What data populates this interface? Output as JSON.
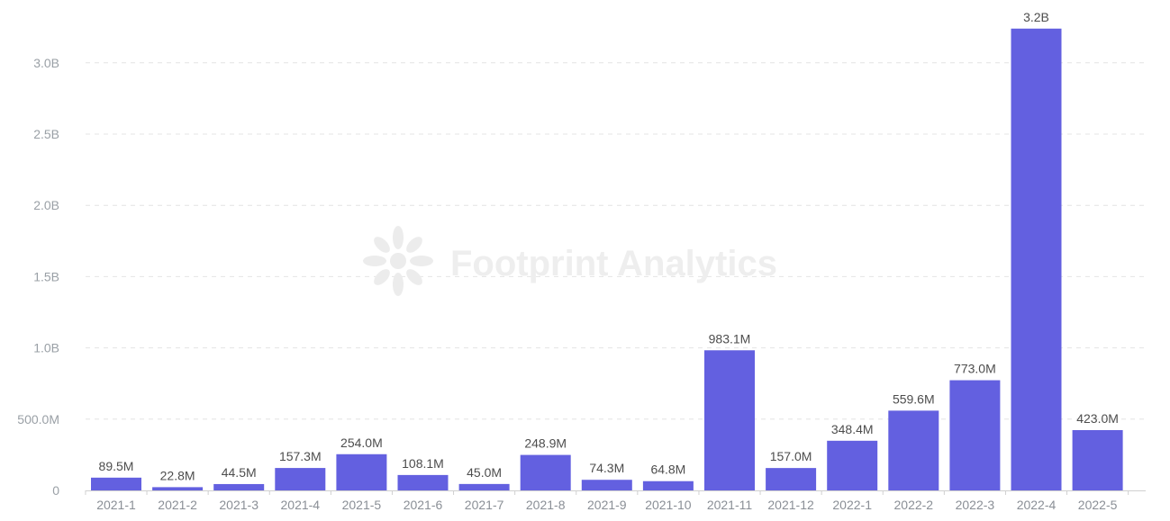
{
  "watermark": {
    "text": "Footprint Analytics"
  },
  "colors": {
    "bar": "#6360E0",
    "grid": "#e4e4e4",
    "axis": "#d0d0d0",
    "watermark": "#eeeeee"
  },
  "chart_data": {
    "type": "bar",
    "categories": [
      "2021-1",
      "2021-2",
      "2021-3",
      "2021-4",
      "2021-5",
      "2021-6",
      "2021-7",
      "2021-8",
      "2021-9",
      "2021-10",
      "2021-11",
      "2021-12",
      "2022-1",
      "2022-2",
      "2022-3",
      "2022-4",
      "2022-5"
    ],
    "values": [
      89500000,
      22800000,
      44500000,
      157300000,
      254000000,
      108100000,
      45000000,
      248900000,
      74300000,
      64800000,
      983100000,
      157000000,
      348400000,
      559600000,
      773000000,
      3240000000,
      423000000
    ],
    "data_labels": [
      "89.5M",
      "22.8M",
      "44.5M",
      "157.3M",
      "254.0M",
      "108.1M",
      "45.0M",
      "248.9M",
      "74.3M",
      "64.8M",
      "983.1M",
      "157.0M",
      "348.4M",
      "559.6M",
      "773.0M",
      "3.2B",
      "423.0M"
    ],
    "y_ticks": [
      0,
      500000000,
      1000000000,
      1500000000,
      2000000000,
      2500000000,
      3000000000
    ],
    "y_tick_labels": [
      "0",
      "500.0M",
      "1.0B",
      "1.5B",
      "2.0B",
      "2.5B",
      "3.0B"
    ],
    "ylim": [
      0,
      3200000000
    ],
    "grid": true,
    "legend": "none"
  }
}
